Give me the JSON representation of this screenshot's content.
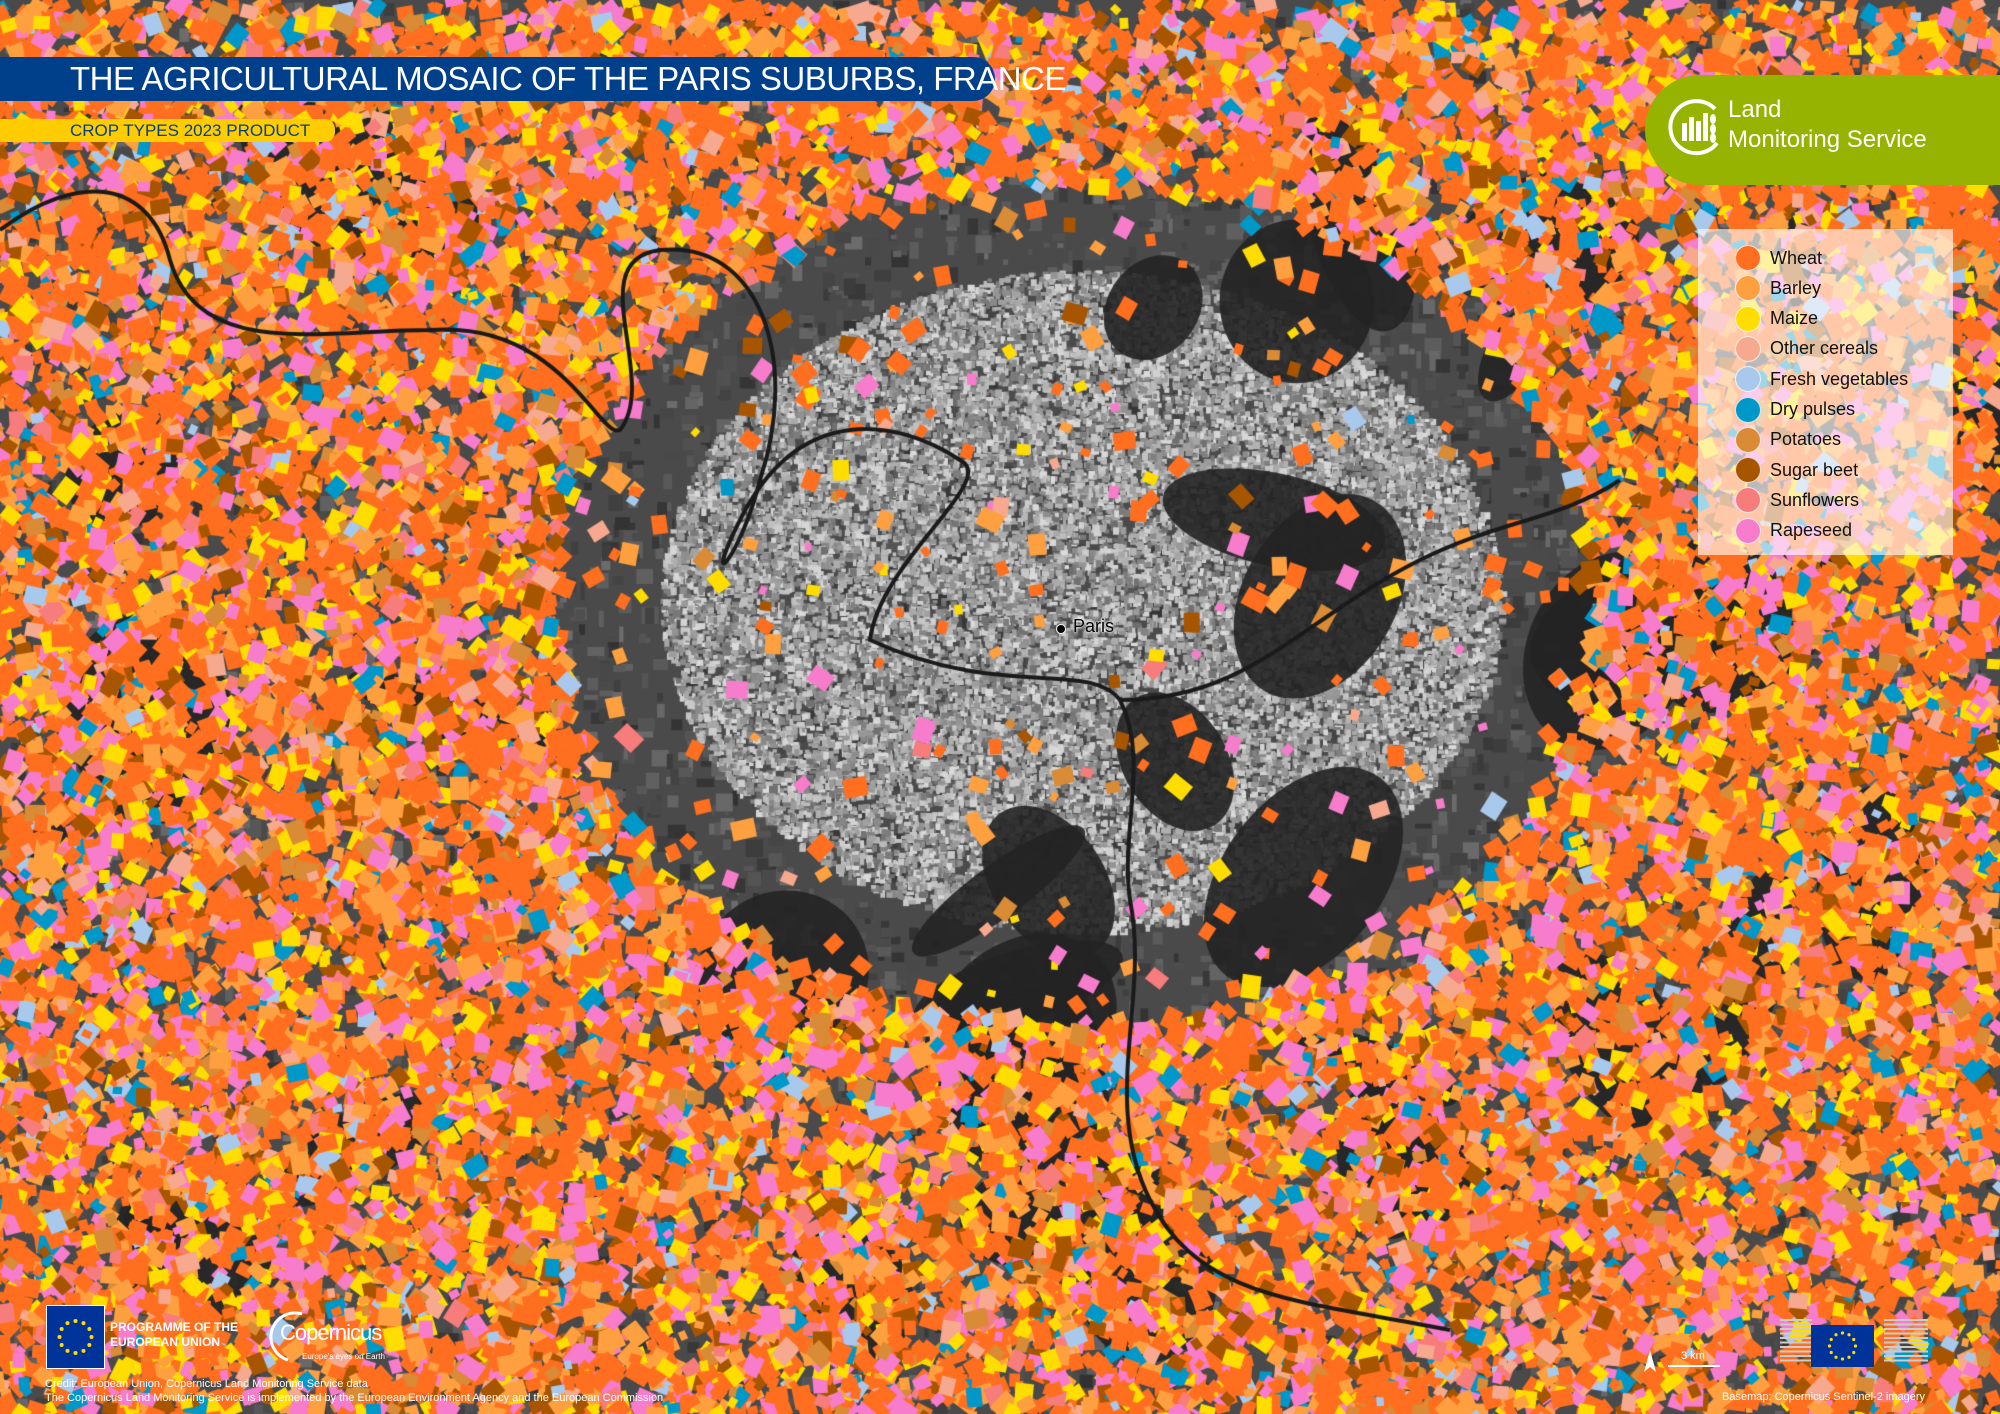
{
  "header": {
    "title": "THE AGRICULTURAL MOSAIC OF THE PARIS SUBURBS, FRANCE",
    "subtitle": "CROP TYPES 2023 PRODUCT"
  },
  "brand": {
    "line1": "Land",
    "line2": "Monitoring Service",
    "color": "#95b300"
  },
  "legend": {
    "items": [
      {
        "label": "Wheat",
        "color": "#ff6f1f"
      },
      {
        "label": "Barley",
        "color": "#ffa040"
      },
      {
        "label": "Maize",
        "color": "#ffdd00"
      },
      {
        "label": "Other cereals",
        "color": "#f7a98f"
      },
      {
        "label": "Fresh vegetables",
        "color": "#a9c9ec"
      },
      {
        "label": "Dry pulses",
        "color": "#0097c9"
      },
      {
        "label": "Potatoes",
        "color": "#d98b35"
      },
      {
        "label": "Sugar beet",
        "color": "#a85500"
      },
      {
        "label": "Sunflowers",
        "color": "#f77c7c"
      },
      {
        "label": "Rapeseed",
        "color": "#f77ccc"
      }
    ]
  },
  "map": {
    "place_label": "Paris",
    "scale_label": "3 km"
  },
  "footer": {
    "programme_line1": "PROGRAMME OF THE",
    "programme_line2": "EUROPEAN UNION",
    "copernicus_word": "Copernicus",
    "copernicus_tagline": "Europe's eyes on Earth",
    "credit_line1": "Credit: European Union, Copernicus Land Monitoring Service data",
    "credit_line2": "The Copernicus Land Monitoring Service is implemented by the European Environment Agency and the European Commission",
    "basemap": "Basemap: Copernicus Sentinel-2 imagery"
  },
  "colors": {
    "title_bar": "#003f8a",
    "subtitle_bar": "#ffcc00"
  }
}
